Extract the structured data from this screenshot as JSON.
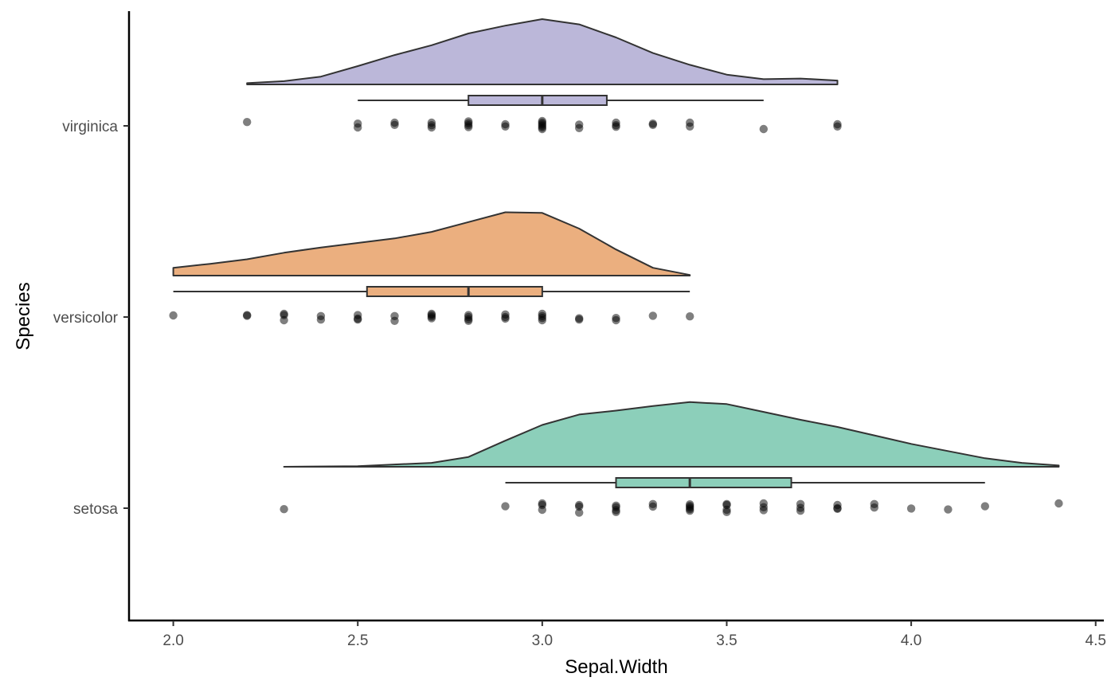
{
  "chart_data": {
    "type": "raincloud",
    "orientation": "horizontal",
    "xlabel": "Sepal.Width",
    "ylabel": "Species",
    "xlim": [
      1.88,
      4.52
    ],
    "x_ticks": [
      "2.0",
      "2.5",
      "3.0",
      "3.5",
      "4.0",
      "4.5"
    ],
    "x_tick_values": [
      2.0,
      2.5,
      3.0,
      3.5,
      4.0,
      4.5
    ],
    "grid": false,
    "legend": "none",
    "categories": [
      "virginica",
      "versicolor",
      "setosa"
    ],
    "series": [
      {
        "category": "virginica",
        "color": "#bbb7d9",
        "density": [
          [
            2.2,
            0.02
          ],
          [
            2.3,
            0.05
          ],
          [
            2.4,
            0.12
          ],
          [
            2.5,
            0.28
          ],
          [
            2.6,
            0.45
          ],
          [
            2.7,
            0.6
          ],
          [
            2.8,
            0.78
          ],
          [
            2.9,
            0.9
          ],
          [
            3.0,
            1.0
          ],
          [
            3.1,
            0.92
          ],
          [
            3.2,
            0.72
          ],
          [
            3.3,
            0.48
          ],
          [
            3.4,
            0.3
          ],
          [
            3.5,
            0.15
          ],
          [
            3.6,
            0.08
          ],
          [
            3.7,
            0.09
          ],
          [
            3.8,
            0.06
          ]
        ],
        "box": {
          "whisker_low": 2.5,
          "q1": 2.8,
          "median": 3.0,
          "q3": 3.175,
          "whisker_high": 3.6
        },
        "points": [
          [
            2.2,
            0.12
          ],
          [
            2.5,
            0.07
          ],
          [
            2.5,
            -0.05
          ],
          [
            2.6,
            0.1
          ],
          [
            2.6,
            0.03
          ],
          [
            2.7,
            0.1
          ],
          [
            2.7,
            0.02
          ],
          [
            2.7,
            -0.05
          ],
          [
            2.8,
            0.14
          ],
          [
            2.8,
            0.08
          ],
          [
            2.8,
            0.02
          ],
          [
            2.8,
            -0.04
          ],
          [
            2.9,
            0.05
          ],
          [
            2.9,
            -0.02
          ],
          [
            3.0,
            0.15
          ],
          [
            3.0,
            0.1
          ],
          [
            3.0,
            0.05
          ],
          [
            3.0,
            0.0
          ],
          [
            3.0,
            -0.05
          ],
          [
            3.0,
            -0.1
          ],
          [
            3.1,
            0.04
          ],
          [
            3.1,
            -0.07
          ],
          [
            3.2,
            0.1
          ],
          [
            3.2,
            0.02
          ],
          [
            3.2,
            -0.03
          ],
          [
            3.3,
            0.07
          ],
          [
            3.3,
            0.03
          ],
          [
            3.4,
            0.1
          ],
          [
            3.4,
            -0.02
          ],
          [
            3.6,
            -0.1
          ],
          [
            3.8,
            0.05
          ],
          [
            3.8,
            -0.02
          ]
        ]
      },
      {
        "category": "versicolor",
        "color": "#ebaf7f",
        "density": [
          [
            2.0,
            0.12
          ],
          [
            2.1,
            0.18
          ],
          [
            2.2,
            0.25
          ],
          [
            2.3,
            0.35
          ],
          [
            2.4,
            0.43
          ],
          [
            2.5,
            0.5
          ],
          [
            2.6,
            0.57
          ],
          [
            2.7,
            0.67
          ],
          [
            2.8,
            0.82
          ],
          [
            2.9,
            0.97
          ],
          [
            3.0,
            0.96
          ],
          [
            3.1,
            0.72
          ],
          [
            3.2,
            0.4
          ],
          [
            3.3,
            0.12
          ],
          [
            3.4,
            0.01
          ]
        ],
        "box": {
          "whisker_low": 2.0,
          "q1": 2.525,
          "median": 2.8,
          "q3": 3.0,
          "whisker_high": 3.4
        },
        "points": [
          [
            2.0,
            0.05
          ],
          [
            2.2,
            0.06
          ],
          [
            2.2,
            0.04
          ],
          [
            2.3,
            0.1
          ],
          [
            2.3,
            0.06
          ],
          [
            2.3,
            -0.1
          ],
          [
            2.4,
            0.03
          ],
          [
            2.4,
            -0.08
          ],
          [
            2.5,
            0.06
          ],
          [
            2.5,
            -0.05
          ],
          [
            2.5,
            -0.08
          ],
          [
            2.6,
            0.03
          ],
          [
            2.6,
            -0.12
          ],
          [
            2.7,
            0.1
          ],
          [
            2.7,
            0.06
          ],
          [
            2.7,
            0.01
          ],
          [
            2.7,
            -0.04
          ],
          [
            2.8,
            0.06
          ],
          [
            2.8,
            0.0
          ],
          [
            2.8,
            -0.07
          ],
          [
            2.8,
            -0.12
          ],
          [
            2.9,
            0.08
          ],
          [
            2.9,
            0.0
          ],
          [
            2.9,
            -0.05
          ],
          [
            3.0,
            0.1
          ],
          [
            3.0,
            0.03
          ],
          [
            3.0,
            -0.03
          ],
          [
            3.0,
            -0.1
          ],
          [
            3.1,
            -0.04
          ],
          [
            3.1,
            -0.08
          ],
          [
            3.2,
            -0.03
          ],
          [
            3.2,
            -0.1
          ],
          [
            3.3,
            0.04
          ],
          [
            3.4,
            0.02
          ]
        ]
      },
      {
        "category": "setosa",
        "color": "#8ccfba",
        "density": [
          [
            2.3,
            0.0
          ],
          [
            2.5,
            0.01
          ],
          [
            2.7,
            0.06
          ],
          [
            2.8,
            0.15
          ],
          [
            2.9,
            0.4
          ],
          [
            3.0,
            0.64
          ],
          [
            3.1,
            0.8
          ],
          [
            3.2,
            0.86
          ],
          [
            3.3,
            0.93
          ],
          [
            3.4,
            0.99
          ],
          [
            3.5,
            0.96
          ],
          [
            3.6,
            0.84
          ],
          [
            3.7,
            0.72
          ],
          [
            3.8,
            0.61
          ],
          [
            3.9,
            0.48
          ],
          [
            4.0,
            0.35
          ],
          [
            4.1,
            0.24
          ],
          [
            4.2,
            0.13
          ],
          [
            4.3,
            0.06
          ],
          [
            4.4,
            0.02
          ]
        ],
        "box": {
          "whisker_low": 2.9,
          "q1": 3.2,
          "median": 3.4,
          "q3": 3.675,
          "whisker_high": 4.2
        },
        "points": [
          [
            2.3,
            -0.03
          ],
          [
            2.9,
            0.06
          ],
          [
            3.0,
            0.15
          ],
          [
            3.0,
            0.1
          ],
          [
            3.0,
            -0.05
          ],
          [
            3.1,
            0.1
          ],
          [
            3.1,
            0.05
          ],
          [
            3.1,
            -0.14
          ],
          [
            3.2,
            0.08
          ],
          [
            3.2,
            0.03
          ],
          [
            3.2,
            -0.06
          ],
          [
            3.2,
            -0.12
          ],
          [
            3.3,
            0.13
          ],
          [
            3.3,
            0.05
          ],
          [
            3.4,
            0.12
          ],
          [
            3.4,
            0.07
          ],
          [
            3.4,
            0.02
          ],
          [
            3.4,
            -0.03
          ],
          [
            3.4,
            -0.08
          ],
          [
            3.5,
            0.13
          ],
          [
            3.5,
            0.1
          ],
          [
            3.5,
            -0.05
          ],
          [
            3.5,
            -0.12
          ],
          [
            3.6,
            0.15
          ],
          [
            3.6,
            0.03
          ],
          [
            3.6,
            -0.06
          ],
          [
            3.7,
            0.13
          ],
          [
            3.7,
            0.01
          ],
          [
            3.7,
            -0.08
          ],
          [
            3.8,
            0.1
          ],
          [
            3.8,
            0.0
          ],
          [
            3.8,
            -0.02
          ],
          [
            3.9,
            0.13
          ],
          [
            3.9,
            0.02
          ],
          [
            4.0,
            -0.01
          ],
          [
            4.1,
            -0.04
          ],
          [
            4.2,
            0.06
          ],
          [
            4.4,
            0.15
          ]
        ]
      }
    ]
  }
}
